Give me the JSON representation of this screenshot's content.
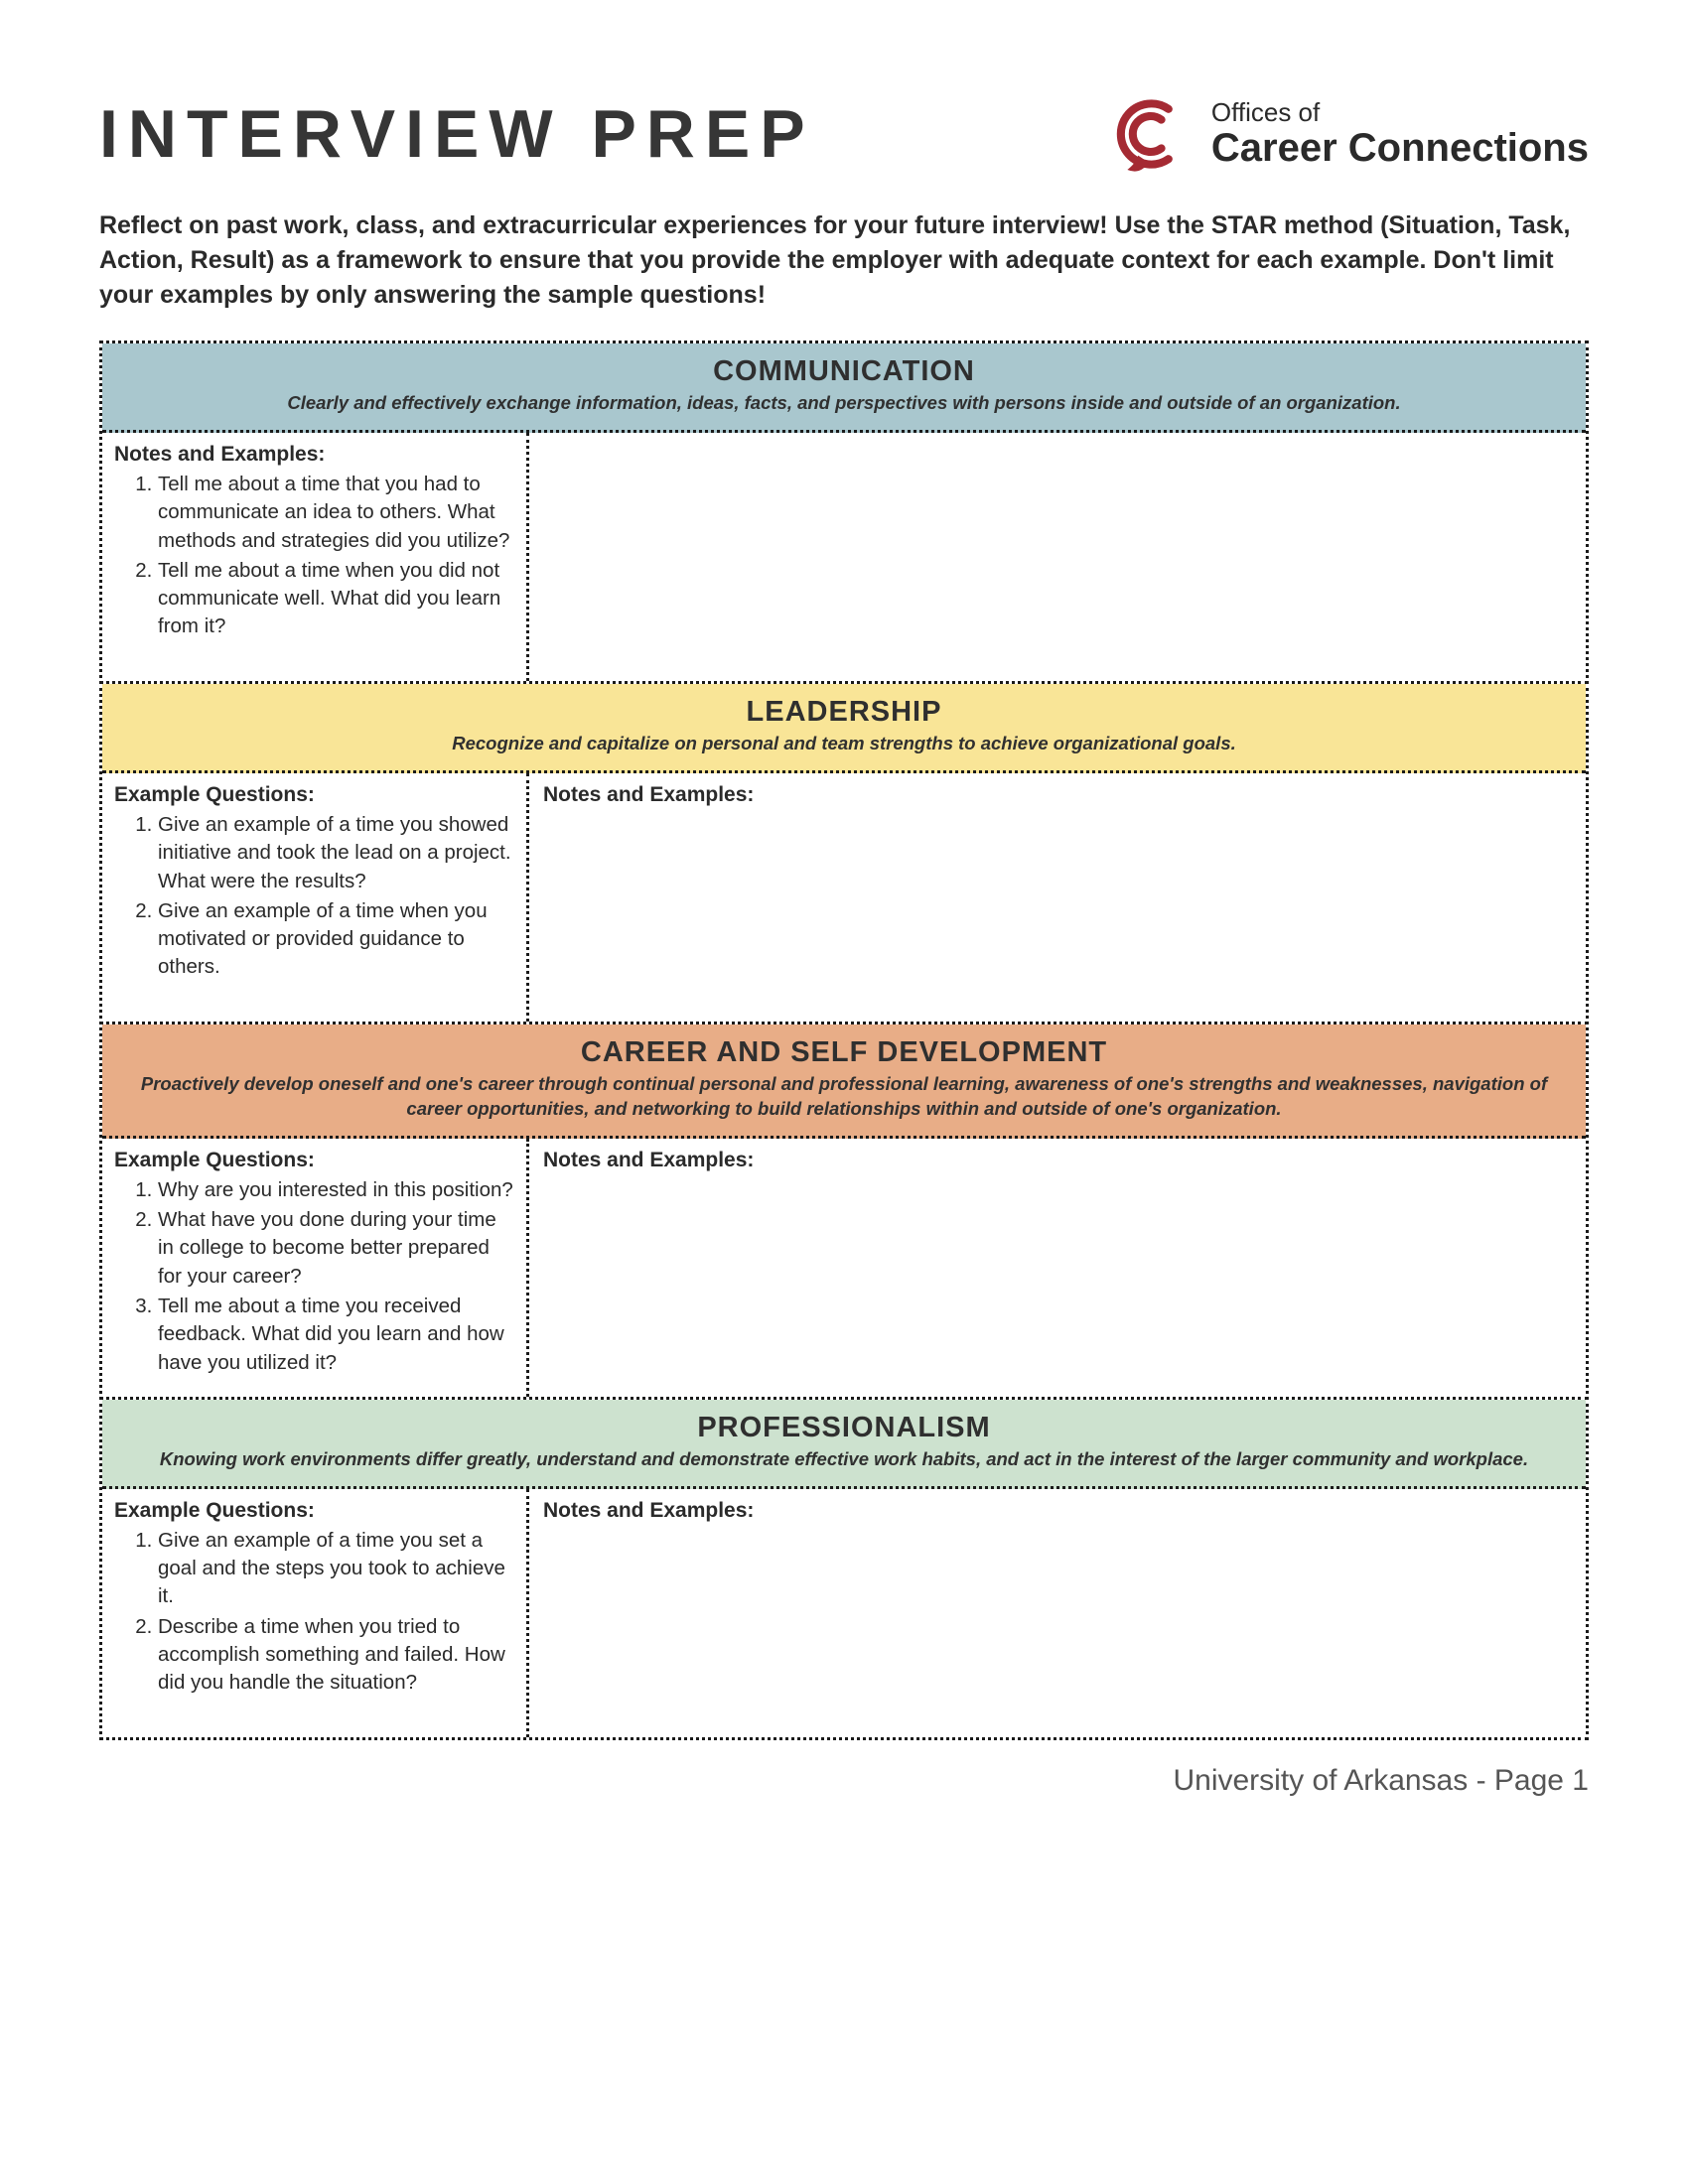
{
  "title": "INTERVIEW PREP",
  "logo": {
    "line1": "Offices of",
    "line2": "Career Connections",
    "icon_color": "#a52a33"
  },
  "intro": "Reflect on past work, class, and extracurricular experiences for your future interview! Use the STAR method (Situation, Task, Action, Result) as a framework to ensure that you provide the employer with adequate context for each example. Don't limit your examples by only answering the sample questions!",
  "colors": {
    "communication": "#a9c7ce",
    "leadership": "#f9e597",
    "career": "#e8ad87",
    "professionalism": "#cde2cf"
  },
  "sections": [
    {
      "key": "communication",
      "title": "COMMUNICATION",
      "desc": "Clearly and effectively exchange  information, ideas, facts, and perspectives with persons inside and outside of an organization.",
      "left_heading": "Notes and Examples:",
      "right_heading": "",
      "questions": [
        "Tell me about a time that you had to communicate an idea to others. What methods and strategies did you utilize?",
        "Tell me about a time when you did not communicate well. What did you learn from it?"
      ]
    },
    {
      "key": "leadership",
      "title": "LEADERSHIP",
      "desc": "Recognize and capitalize on personal and team strengths to achieve organizational goals.",
      "left_heading": "Example Questions:",
      "right_heading": "Notes and Examples:",
      "questions": [
        "Give an example of a time you showed initiative and took the lead on a project. What were the results?",
        "Give an example of a time when you motivated or provided guidance to others."
      ]
    },
    {
      "key": "career",
      "title": "CAREER AND SELF DEVELOPMENT",
      "desc": "Proactively develop oneself and one's career through continual personal and professional learning, awareness of one's strengths and weaknesses, navigation of career opportunities, and networking to build relationships within and outside of one's organization.",
      "left_heading": "Example Questions:",
      "right_heading": "Notes and Examples:",
      "questions": [
        "Why are you interested in this position?",
        "What have you done during your time in college to become better prepared for your career?",
        "Tell me about a time you received feedback. What did you learn and how have you utilized it?"
      ]
    },
    {
      "key": "professionalism",
      "title": "PROFESSIONALISM",
      "desc": "Knowing work environments differ greatly, understand and demonstrate effective work habits, and act in the interest of the larger community and workplace.",
      "left_heading": "Example Questions:",
      "right_heading": "Notes and Examples:",
      "questions": [
        "Give an example of a time you set a goal and the steps you took to achieve it.",
        "Describe a time when you tried to accomplish something and failed. How did you handle the situation?"
      ]
    }
  ],
  "footer": "University of Arkansas - Page 1"
}
